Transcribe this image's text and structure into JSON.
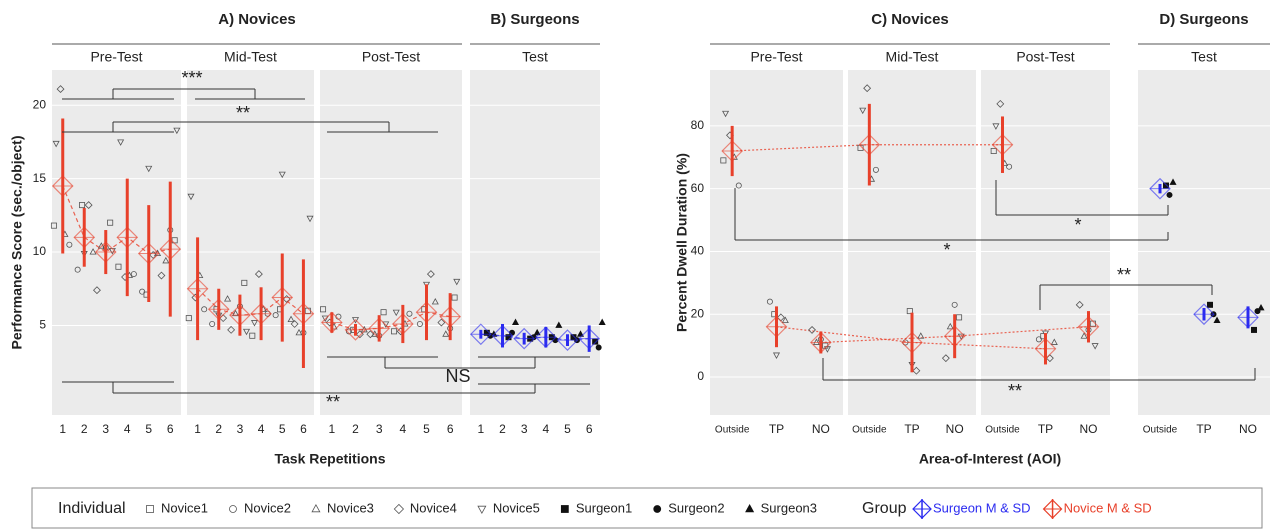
{
  "legend": {
    "individual_title": "Individual",
    "group_title": "Group",
    "individuals": [
      {
        "name": "Novice1",
        "marker": "square",
        "filled": false
      },
      {
        "name": "Novice2",
        "marker": "circle",
        "filled": false
      },
      {
        "name": "Novice3",
        "marker": "triangle",
        "filled": false
      },
      {
        "name": "Novice4",
        "marker": "diamond",
        "filled": false
      },
      {
        "name": "Novice5",
        "marker": "triangle-down",
        "filled": false
      },
      {
        "name": "Surgeon1",
        "marker": "square",
        "filled": true
      },
      {
        "name": "Surgeon2",
        "marker": "circle",
        "filled": true
      },
      {
        "name": "Surgeon3",
        "marker": "triangle",
        "filled": true
      }
    ],
    "groups": [
      {
        "name": "Surgeon M & SD",
        "color": "#2b2bf0"
      },
      {
        "name": "Novice M & SD",
        "color": "#e8402a"
      }
    ]
  },
  "chart_data": [
    {
      "type": "dot-errorbar",
      "ylabel": "Performance Score (sec./object)",
      "xlabel": "Task Repetitions",
      "ylim": [
        -1.1,
        22.4
      ],
      "yticks": [
        5,
        10,
        15,
        20
      ],
      "connect": "within-facet",
      "line_style": "dashed",
      "annotations": [
        "***",
        "**",
        "NS",
        "**"
      ],
      "panels": [
        {
          "title": "A) Novices",
          "color": "#e8402a",
          "facets": [
            {
              "label": "Pre-Test",
              "categories": [
                "1",
                "2",
                "3",
                "4",
                "5",
                "6"
              ]
            },
            {
              "label": "Mid-Test",
              "categories": [
                "1",
                "2",
                "3",
                "4",
                "5",
                "6"
              ]
            },
            {
              "label": "Post-Test",
              "categories": [
                "1",
                "2",
                "3",
                "4",
                "5",
                "6"
              ]
            }
          ],
          "mean": [
            14.5,
            11,
            10,
            11,
            9.9,
            10.2,
            7.5,
            6.1,
            5.7,
            5.8,
            6.9,
            5.8,
            5.2,
            4.7,
            4.8,
            5.1,
            5.9,
            5.6
          ],
          "sd": [
            4.6,
            2,
            1.5,
            4,
            3.3,
            4.6,
            3.5,
            1.4,
            1.4,
            1.8,
            3,
            3.7,
            0.7,
            0.4,
            0.9,
            1.3,
            1.9,
            1.6
          ],
          "individuals": [
            [
              11.8,
              13.2,
              12,
              9,
              7.1,
              10.8,
              5.5,
              6.1,
              7.9,
              4.3,
              6.1,
              6,
              6.1,
              4.7,
              5.9,
              4.6,
              6.1,
              6.9
            ],
            [
              10.5,
              8.8,
              10.3,
              8.5,
              7.3,
              11.5,
              6.1,
              5.1,
              6.3,
              5.8,
              5.7,
              4.5,
              5.6,
              4.6,
              4.3,
              5.8,
              5.1,
              4.8
            ],
            [
              11.2,
              10,
              10.4,
              8.4,
              9.9,
              9.4,
              8.4,
              6.8,
              5.8,
              6.1,
              5.4,
              4.5,
              4.9,
              4.7,
              4.4,
              5.1,
              6.6,
              4.4
            ],
            [
              21.1,
              13.2,
              7.4,
              8.3,
              9.8,
              8.4,
              6.9,
              5.5,
              4.7,
              8.5,
              6.8,
              5.1,
              5.2,
              4.4,
              4.4,
              4.6,
              8.5,
              5.2
            ],
            [
              17.4,
              9.9,
              10.1,
              17.5,
              15.7,
              18.3,
              13.8,
              5.7,
              4.6,
              5.2,
              15.3,
              12.3,
              5.5,
              5.4,
              5.1,
              5.9,
              7.8,
              8
            ]
          ]
        },
        {
          "title": "B) Surgeons",
          "color": "#2b2bf0",
          "facets": [
            {
              "label": "Test",
              "categories": [
                "1",
                "2",
                "3",
                "4",
                "5",
                "6"
              ]
            }
          ],
          "mean": [
            4.4,
            4.3,
            4.1,
            4.2,
            4,
            4.1
          ],
          "sd": [
            0.3,
            0.8,
            0.4,
            0.7,
            0.4,
            0.9
          ],
          "individuals": [
            [
              4.5,
              4.2,
              4.1,
              4.2,
              4.2,
              3.9
            ],
            [
              4.3,
              4.5,
              4.2,
              4,
              4,
              3.5
            ],
            [
              4.4,
              5.2,
              4.5,
              5,
              4.4,
              5.2
            ]
          ]
        }
      ]
    },
    {
      "type": "dot-errorbar",
      "ylabel": "Percent Dwell Duration (%)",
      "xlabel": "Area-of-Interest (AOI)",
      "ylim": [
        -12.1,
        97.8
      ],
      "yticks": [
        0,
        20,
        40,
        60,
        80
      ],
      "connect": "across-facets",
      "line_style": "dotted",
      "annotations": [
        "*",
        "*",
        "**",
        "**"
      ],
      "panels": [
        {
          "title": "C) Novices",
          "color": "#e8402a",
          "facets": [
            {
              "label": "Pre-Test",
              "categories": [
                "Outside",
                "TP",
                "NO"
              ]
            },
            {
              "label": "Mid-Test",
              "categories": [
                "Outside",
                "TP",
                "NO"
              ]
            },
            {
              "label": "Post-Test",
              "categories": [
                "Outside",
                "TP",
                "NO"
              ]
            }
          ],
          "mean": [
            72,
            16,
            11,
            74,
            11,
            13,
            74,
            9,
            16
          ],
          "sd": [
            8,
            6.5,
            3.5,
            13,
            9.5,
            7,
            9,
            5,
            5
          ],
          "individuals": [
            [
              69,
              20,
              10,
              73,
              21,
              19,
              72,
              13,
              17
            ],
            [
              61,
              24,
              12,
              66,
              11,
              23,
              67,
              12,
              15
            ],
            [
              70,
              18,
              11,
              63,
              13,
              16,
              68,
              11,
              13
            ],
            [
              77,
              19,
              15,
              92,
              2,
              6,
              87,
              6,
              23
            ],
            [
              84,
              7,
              9,
              85,
              4,
              13,
              80,
              14,
              10
            ]
          ]
        },
        {
          "title": "D) Surgeons",
          "color": "#2b2bf0",
          "facets": [
            {
              "label": "Test",
              "categories": [
                "Outside",
                "TP",
                "NO"
              ]
            }
          ],
          "mean": [
            60,
            20,
            19
          ],
          "sd": [
            1.5,
            2,
            3.5
          ],
          "individuals": [
            [
              61,
              23,
              15
            ],
            [
              58,
              20,
              21
            ],
            [
              62,
              18,
              22
            ]
          ]
        }
      ]
    }
  ]
}
